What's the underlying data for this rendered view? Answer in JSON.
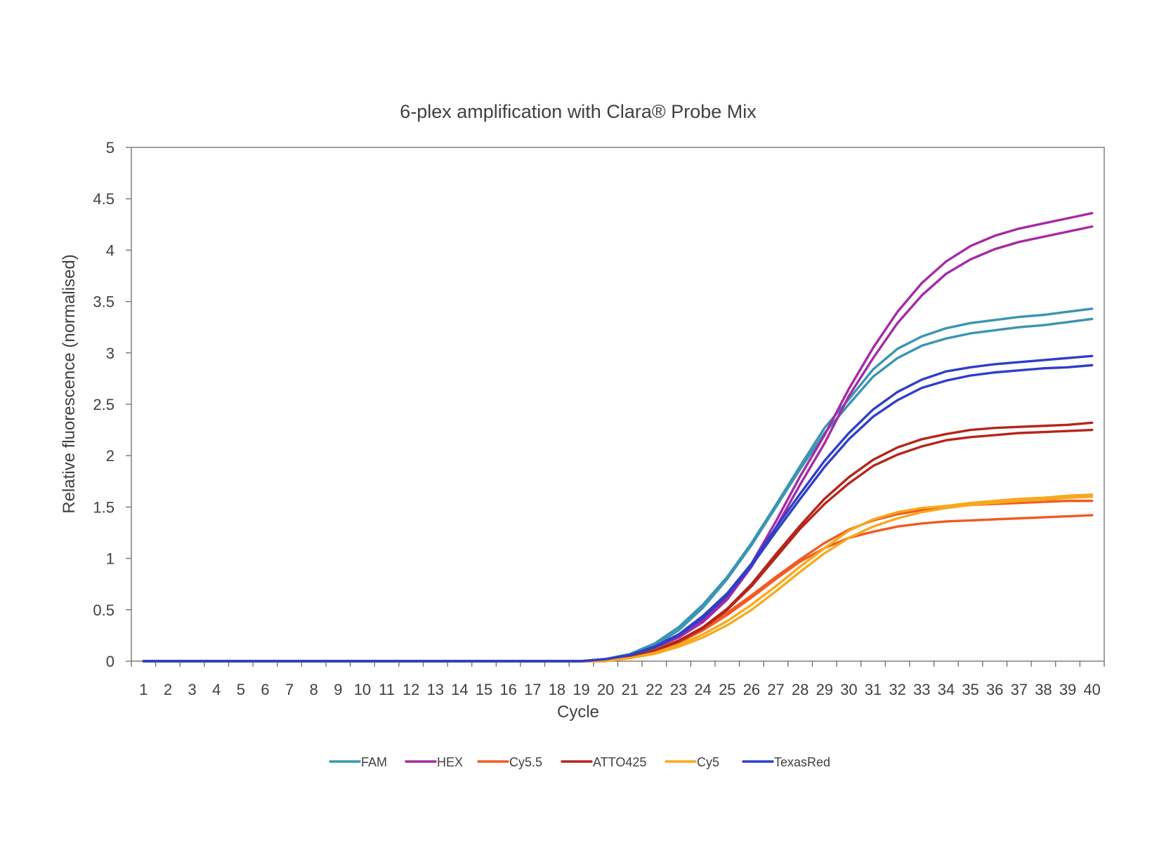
{
  "chart_data": {
    "type": "line",
    "title": "6-plex amplification with Clara® Probe Mix",
    "xlabel": "Cycle",
    "ylabel": "Relative fluorescence (normalised)",
    "ylim": [
      0,
      5
    ],
    "yticks": [
      "0",
      "0.5",
      "1",
      "1.5",
      "2",
      "2.5",
      "3",
      "3.5",
      "4",
      "4.5",
      "5"
    ],
    "x": [
      1,
      2,
      3,
      4,
      5,
      6,
      7,
      8,
      9,
      10,
      11,
      12,
      13,
      14,
      15,
      16,
      17,
      18,
      19,
      20,
      21,
      22,
      23,
      24,
      25,
      26,
      27,
      28,
      29,
      30,
      31,
      32,
      33,
      34,
      35,
      36,
      37,
      38,
      39,
      40
    ],
    "grid": false,
    "legend_position": "bottom",
    "legend": [
      {
        "name": "FAM",
        "color": "#3a95b3"
      },
      {
        "name": "HEX",
        "color": "#a52aa5"
      },
      {
        "name": "Cy5.5",
        "color": "#f25a22"
      },
      {
        "name": "ATTO425",
        "color": "#b5261a"
      },
      {
        "name": "Cy5",
        "color": "#f7a91e"
      },
      {
        "name": "TexasRed",
        "color": "#2f3fc8"
      }
    ],
    "series": [
      {
        "dye": "FAM",
        "color": "#3a95b3",
        "values": [
          0,
          0,
          0,
          0,
          0,
          0,
          0,
          0,
          0,
          0,
          0,
          0,
          0,
          0,
          0,
          0,
          0,
          0,
          0,
          0.02,
          0.07,
          0.17,
          0.33,
          0.55,
          0.82,
          1.15,
          1.52,
          1.9,
          2.27,
          2.55,
          2.84,
          3.04,
          3.16,
          3.24,
          3.29,
          3.32,
          3.35,
          3.37,
          3.4,
          3.43
        ]
      },
      {
        "dye": "FAM",
        "color": "#3a95b3",
        "values": [
          0,
          0,
          0,
          0,
          0,
          0,
          0,
          0,
          0,
          0,
          0,
          0,
          0,
          0,
          0,
          0,
          0,
          0,
          0,
          0.02,
          0.06,
          0.15,
          0.3,
          0.52,
          0.8,
          1.13,
          1.5,
          1.87,
          2.22,
          2.5,
          2.77,
          2.95,
          3.07,
          3.14,
          3.19,
          3.22,
          3.25,
          3.27,
          3.3,
          3.33
        ]
      },
      {
        "dye": "HEX",
        "color": "#a52aa5",
        "values": [
          0,
          0,
          0,
          0,
          0,
          0,
          0,
          0,
          0,
          0,
          0,
          0,
          0,
          0,
          0,
          0,
          0,
          0,
          0,
          0.02,
          0.06,
          0.13,
          0.24,
          0.4,
          0.63,
          0.95,
          1.36,
          1.8,
          2.2,
          2.65,
          3.05,
          3.4,
          3.68,
          3.89,
          4.04,
          4.14,
          4.21,
          4.26,
          4.31,
          4.36
        ]
      },
      {
        "dye": "HEX",
        "color": "#a52aa5",
        "values": [
          0,
          0,
          0,
          0,
          0,
          0,
          0,
          0,
          0,
          0,
          0,
          0,
          0,
          0,
          0,
          0,
          0,
          0,
          0,
          0.02,
          0.06,
          0.13,
          0.23,
          0.38,
          0.6,
          0.92,
          1.3,
          1.72,
          2.12,
          2.58,
          2.95,
          3.29,
          3.56,
          3.77,
          3.91,
          4.01,
          4.08,
          4.13,
          4.18,
          4.23
        ]
      },
      {
        "dye": "Cy5.5",
        "color": "#f25a22",
        "values": [
          0,
          0,
          0,
          0,
          0,
          0,
          0,
          0,
          0,
          0,
          0,
          0,
          0,
          0,
          0,
          0,
          0,
          0,
          0,
          0.02,
          0.05,
          0.11,
          0.2,
          0.32,
          0.47,
          0.64,
          0.82,
          0.99,
          1.15,
          1.28,
          1.37,
          1.43,
          1.47,
          1.5,
          1.52,
          1.53,
          1.54,
          1.55,
          1.56,
          1.56
        ]
      },
      {
        "dye": "Cy5.5",
        "color": "#f25a22",
        "values": [
          0,
          0,
          0,
          0,
          0,
          0,
          0,
          0,
          0,
          0,
          0,
          0,
          0,
          0,
          0,
          0,
          0,
          0,
          0,
          0.02,
          0.05,
          0.1,
          0.18,
          0.3,
          0.45,
          0.62,
          0.8,
          0.97,
          1.1,
          1.2,
          1.26,
          1.31,
          1.34,
          1.36,
          1.37,
          1.38,
          1.39,
          1.4,
          1.41,
          1.42
        ]
      },
      {
        "dye": "ATTO425",
        "color": "#b5261a",
        "values": [
          0,
          0,
          0,
          0,
          0,
          0,
          0,
          0,
          0,
          0,
          0,
          0,
          0,
          0,
          0,
          0,
          0,
          0,
          0,
          0,
          0.04,
          0.1,
          0.2,
          0.33,
          0.51,
          0.75,
          1.04,
          1.32,
          1.58,
          1.79,
          1.96,
          2.08,
          2.16,
          2.21,
          2.25,
          2.27,
          2.28,
          2.29,
          2.3,
          2.32
        ]
      },
      {
        "dye": "ATTO425",
        "color": "#b5261a",
        "values": [
          0,
          0,
          0,
          0,
          0,
          0,
          0,
          0,
          0,
          0,
          0,
          0,
          0,
          0,
          0,
          0,
          0,
          0,
          0,
          0,
          0.04,
          0.1,
          0.19,
          0.32,
          0.5,
          0.73,
          1.01,
          1.29,
          1.53,
          1.73,
          1.9,
          2.01,
          2.09,
          2.15,
          2.18,
          2.2,
          2.22,
          2.23,
          2.24,
          2.25
        ]
      },
      {
        "dye": "Cy5",
        "color": "#f7a91e",
        "values": [
          0,
          0,
          0,
          0,
          0,
          0,
          0,
          0,
          0,
          0,
          0,
          0,
          0,
          0,
          0,
          0,
          0,
          0,
          0,
          0,
          0.03,
          0.08,
          0.16,
          0.26,
          0.39,
          0.55,
          0.73,
          0.92,
          1.1,
          1.27,
          1.38,
          1.45,
          1.49,
          1.51,
          1.54,
          1.56,
          1.58,
          1.59,
          1.61,
          1.62
        ]
      },
      {
        "dye": "Cy5",
        "color": "#f7a91e",
        "values": [
          0,
          0,
          0,
          0,
          0,
          0,
          0,
          0,
          0,
          0,
          0,
          0,
          0,
          0,
          0,
          0,
          0,
          0,
          0,
          0,
          0.03,
          0.07,
          0.14,
          0.23,
          0.35,
          0.5,
          0.68,
          0.87,
          1.05,
          1.2,
          1.31,
          1.39,
          1.45,
          1.49,
          1.52,
          1.54,
          1.56,
          1.57,
          1.59,
          1.6
        ]
      },
      {
        "dye": "TexasRed",
        "color": "#2f3fc8",
        "values": [
          0,
          0,
          0,
          0,
          0,
          0,
          0,
          0,
          0,
          0,
          0,
          0,
          0,
          0,
          0,
          0,
          0,
          0,
          0,
          0.02,
          0.06,
          0.14,
          0.26,
          0.44,
          0.66,
          0.95,
          1.3,
          1.63,
          1.95,
          2.22,
          2.45,
          2.62,
          2.74,
          2.82,
          2.86,
          2.89,
          2.91,
          2.93,
          2.95,
          2.97
        ]
      },
      {
        "dye": "TexasRed",
        "color": "#2f3fc8",
        "values": [
          0,
          0,
          0,
          0,
          0,
          0,
          0,
          0,
          0,
          0,
          0,
          0,
          0,
          0,
          0,
          0,
          0,
          0,
          0,
          0.02,
          0.06,
          0.13,
          0.25,
          0.42,
          0.64,
          0.93,
          1.26,
          1.58,
          1.89,
          2.16,
          2.38,
          2.54,
          2.66,
          2.73,
          2.78,
          2.81,
          2.83,
          2.85,
          2.86,
          2.88
        ]
      }
    ]
  }
}
